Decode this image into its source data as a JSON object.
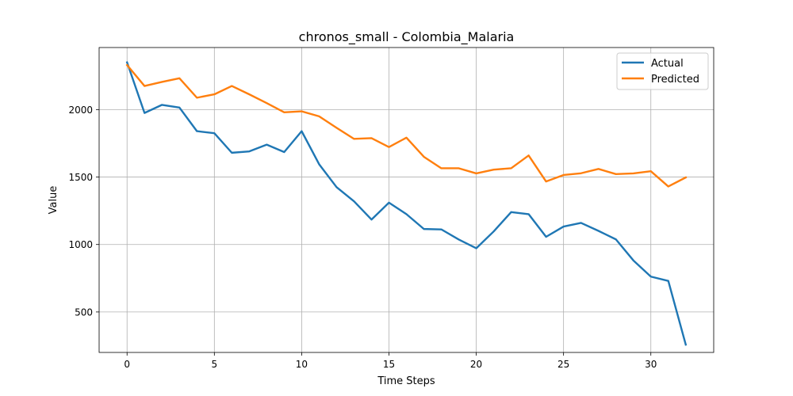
{
  "chart_data": {
    "type": "line",
    "title": "chronos_small - Colombia_Malaria",
    "xlabel": "Time Steps",
    "ylabel": "Value",
    "xlim": [
      -1.6,
      33.6
    ],
    "ylim": [
      200,
      2460
    ],
    "xticks": [
      0,
      5,
      10,
      15,
      20,
      25,
      30
    ],
    "yticks": [
      500,
      1000,
      1500,
      2000
    ],
    "grid": true,
    "legend_position": "top-right",
    "x": [
      0,
      1,
      2,
      3,
      4,
      5,
      6,
      7,
      8,
      9,
      10,
      11,
      12,
      13,
      14,
      15,
      16,
      17,
      18,
      19,
      20,
      21,
      22,
      23,
      24,
      25,
      26,
      27,
      28,
      29,
      30,
      31,
      32
    ],
    "series": [
      {
        "name": "Actual",
        "color": "#1f77b4",
        "values": [
          2350,
          1975,
          2035,
          2015,
          1840,
          1825,
          1680,
          1690,
          1740,
          1685,
          1840,
          1595,
          1425,
          1320,
          1185,
          1310,
          1225,
          1115,
          1112,
          1037,
          972,
          1097,
          1240,
          1225,
          1057,
          1133,
          1160,
          1101,
          1038,
          882,
          762,
          730,
          258
        ]
      },
      {
        "name": "Predicted",
        "color": "#ff7f0e",
        "values": [
          2330,
          2175,
          2205,
          2232,
          2088,
          2113,
          2175,
          2113,
          2048,
          1980,
          1987,
          1950,
          1865,
          1783,
          1788,
          1722,
          1792,
          1650,
          1565,
          1565,
          1527,
          1555,
          1565,
          1660,
          1467,
          1515,
          1528,
          1560,
          1522,
          1527,
          1543,
          1430,
          1497
        ]
      }
    ]
  }
}
